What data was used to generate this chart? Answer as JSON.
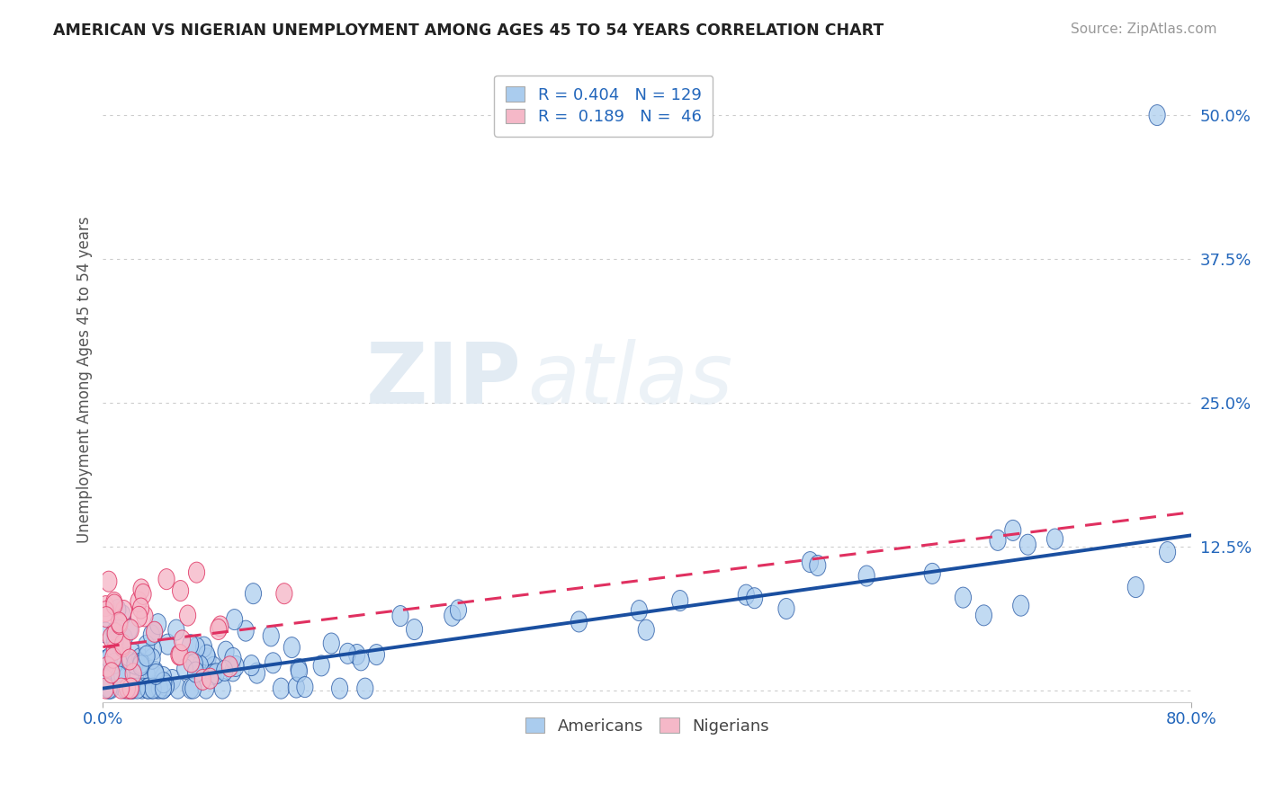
{
  "title": "AMERICAN VS NIGERIAN UNEMPLOYMENT AMONG AGES 45 TO 54 YEARS CORRELATION CHART",
  "source": "Source: ZipAtlas.com",
  "ylabel": "Unemployment Among Ages 45 to 54 years",
  "r_american": 0.404,
  "n_american": 129,
  "r_nigerian": 0.189,
  "n_nigerian": 46,
  "american_color": "#aaccee",
  "nigerian_color": "#f5b8c8",
  "american_line_color": "#1a4fa0",
  "nigerian_line_color": "#e03060",
  "xlim": [
    0,
    0.8
  ],
  "ylim": [
    -0.01,
    0.55
  ],
  "background_color": "#ffffff",
  "am_line_start_y": 0.002,
  "am_line_end_y": 0.135,
  "nig_line_start_y": 0.038,
  "nig_line_end_y": 0.155,
  "watermark_zip": "ZIP",
  "watermark_atlas": "atlas"
}
